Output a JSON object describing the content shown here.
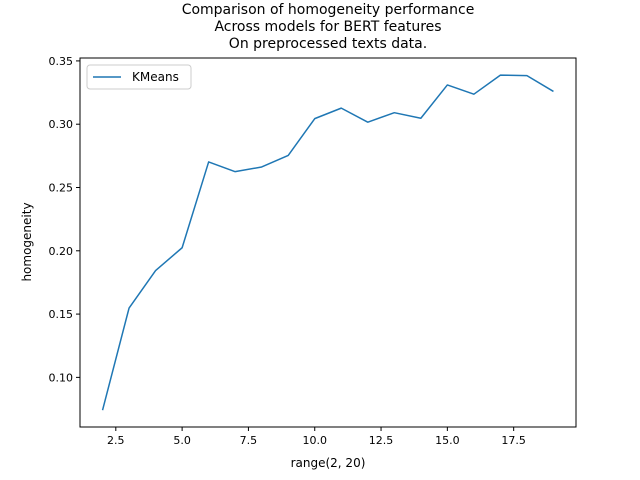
{
  "chart_data": {
    "type": "line",
    "title_lines": [
      "Comparison of homogeneity performance",
      "Across models for BERT features",
      "On preprocessed texts data."
    ],
    "xlabel": "range(2, 20)",
    "ylabel": "homogeneity",
    "xlim": [
      1.15,
      19.85
    ],
    "ylim": [
      0.0608,
      0.3523
    ],
    "x_ticks": [
      2.5,
      5.0,
      7.5,
      10.0,
      12.5,
      15.0,
      17.5
    ],
    "x_tick_labels": [
      "2.5",
      "5.0",
      "7.5",
      "10.0",
      "12.5",
      "15.0",
      "17.5"
    ],
    "y_ticks": [
      0.1,
      0.15,
      0.2,
      0.25,
      0.3,
      0.35
    ],
    "y_tick_labels": [
      "0.10",
      "0.15",
      "0.20",
      "0.25",
      "0.30",
      "0.35"
    ],
    "grid": false,
    "legend_position": "top-left",
    "series": [
      {
        "name": "KMeans",
        "color": "#1f77b4",
        "x": [
          2,
          3,
          4,
          5,
          6,
          7,
          8,
          9,
          10,
          11,
          12,
          13,
          14,
          15,
          16,
          17,
          18,
          19
        ],
        "y": [
          0.0741,
          0.1548,
          0.1844,
          0.2024,
          0.2702,
          0.2625,
          0.2662,
          0.2753,
          0.3044,
          0.3127,
          0.3016,
          0.3091,
          0.3047,
          0.331,
          0.3237,
          0.3388,
          0.3384,
          0.3259
        ]
      }
    ]
  }
}
